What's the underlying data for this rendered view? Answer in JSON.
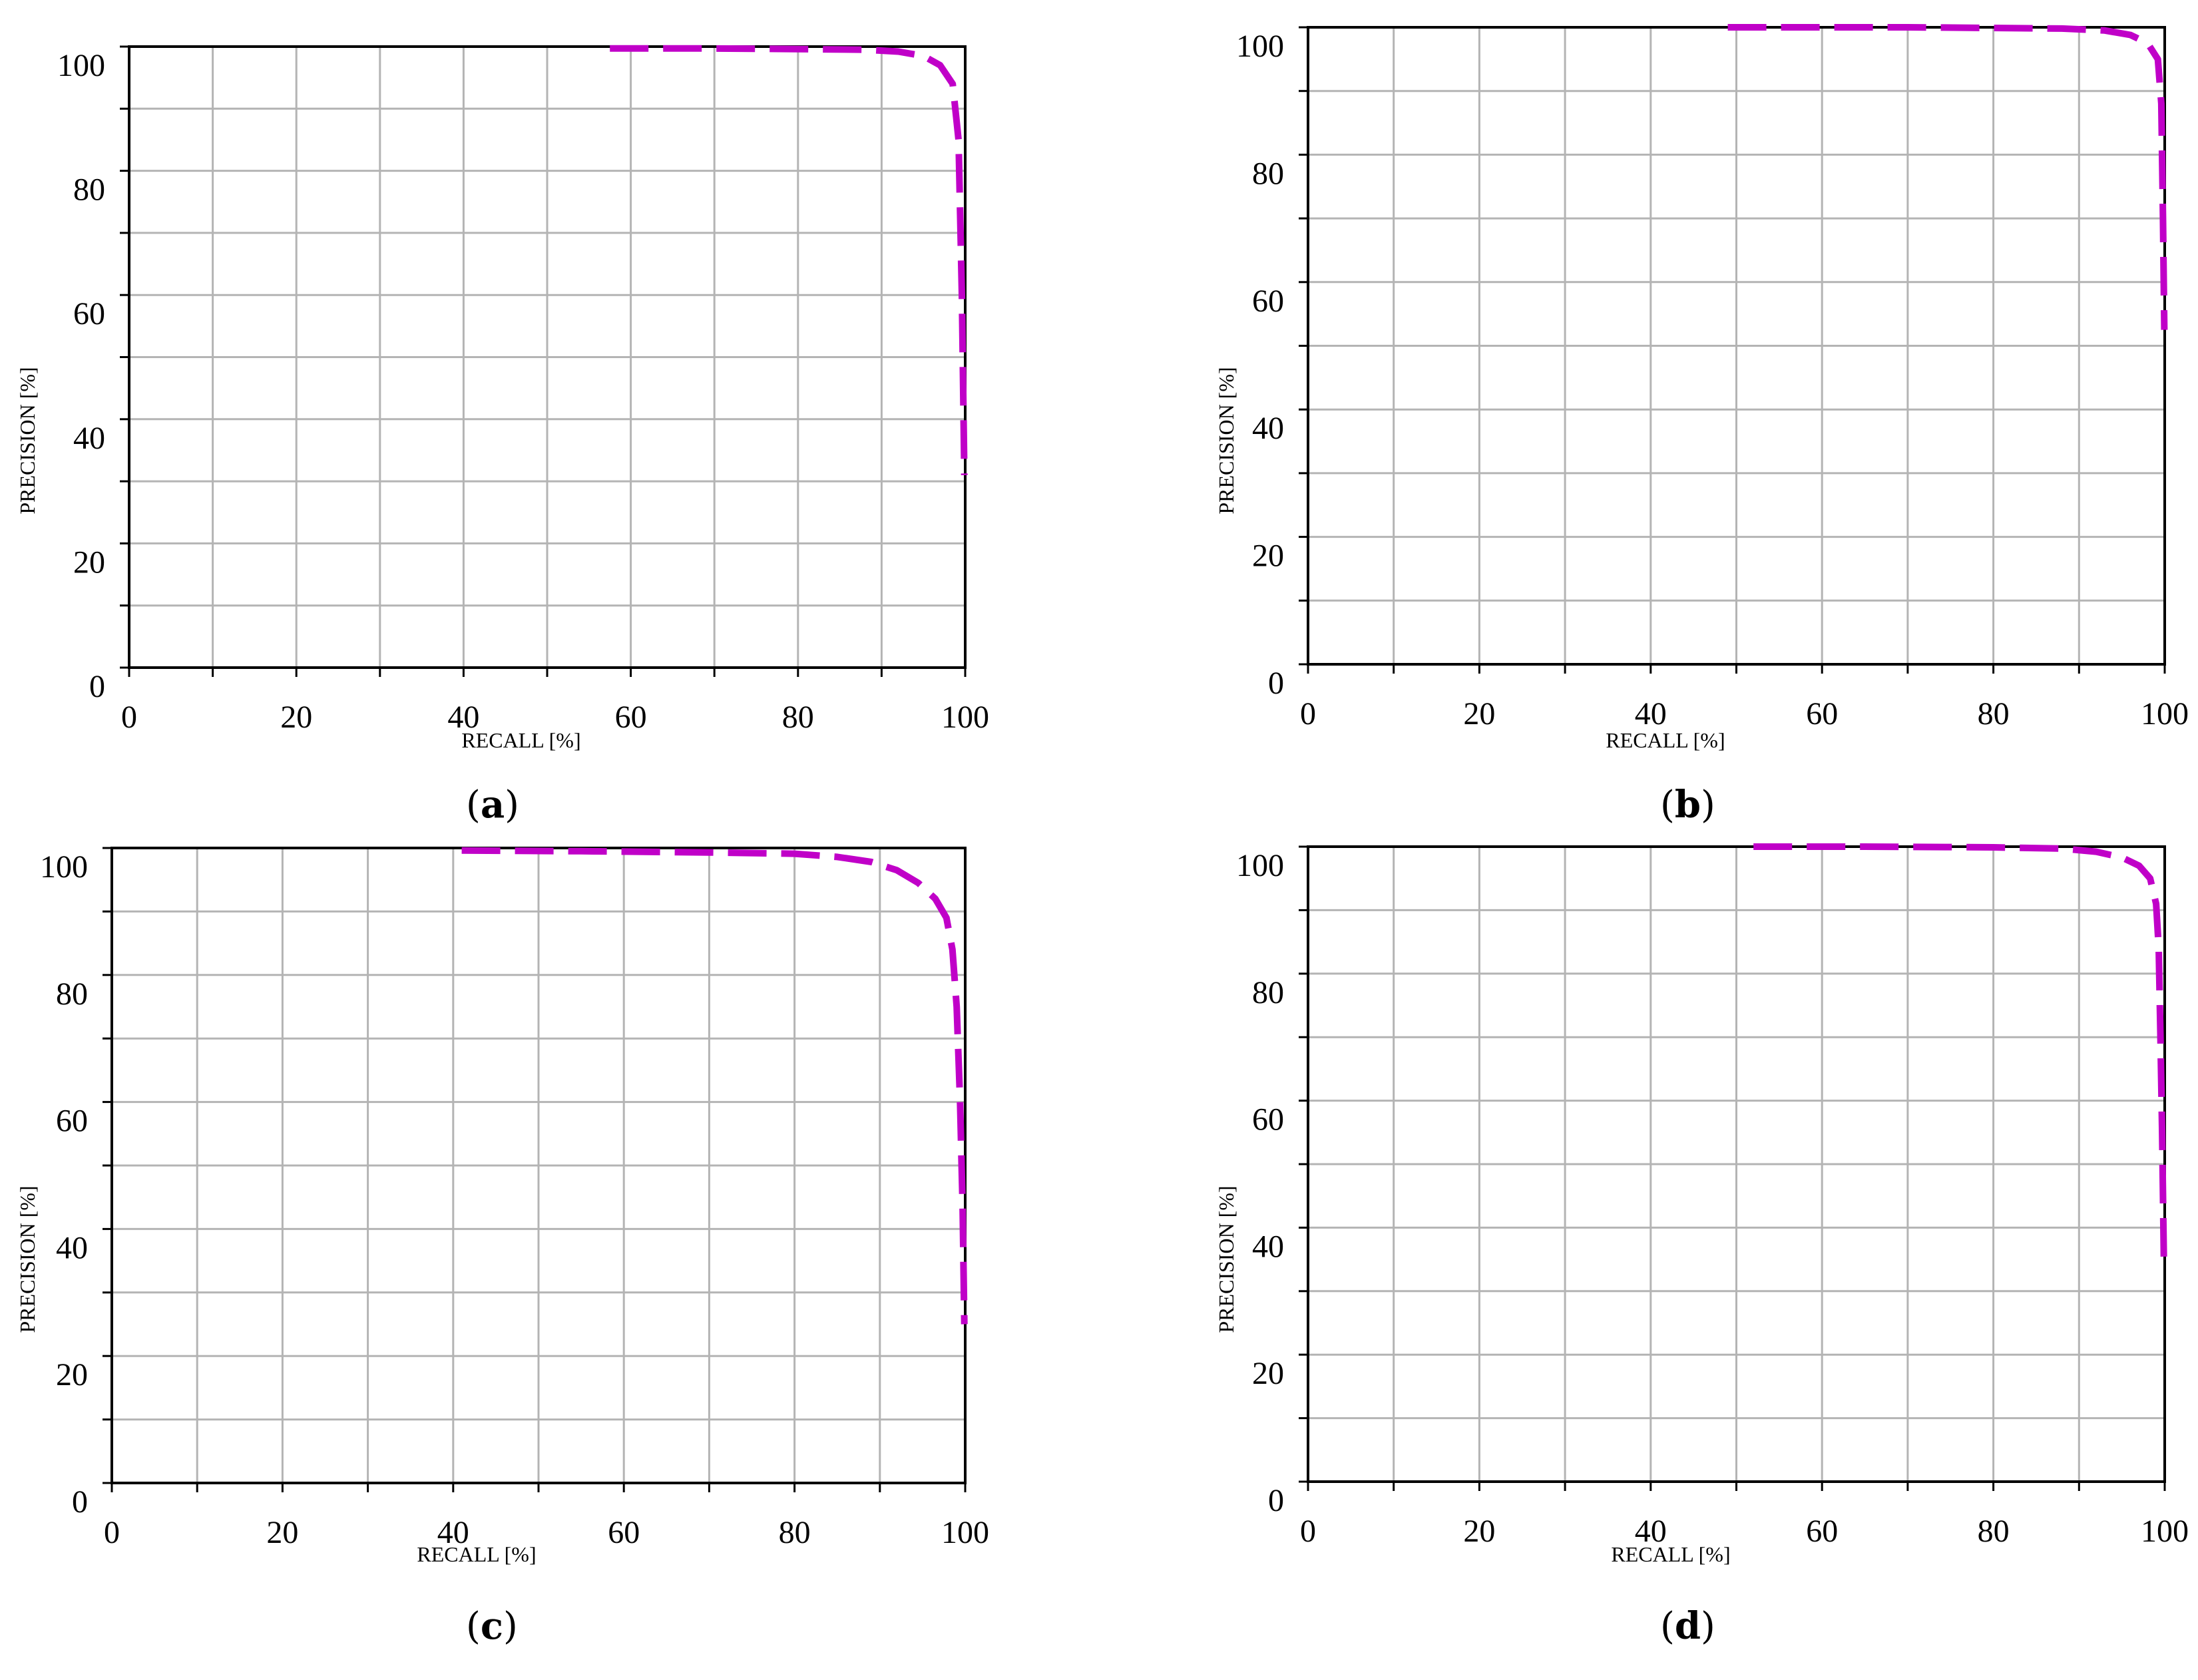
{
  "colors": {
    "curve": "#c000c8",
    "grid": "#b4b4b4",
    "axis": "#000000"
  },
  "chart_data": [
    {
      "type": "line",
      "panel_label": "a",
      "xlabel": "RECALL [%]",
      "ylabel": "PRECISION [%]",
      "xlim": [
        0,
        100
      ],
      "ylim": [
        0,
        100
      ],
      "x_ticks": [
        0,
        20,
        40,
        60,
        80,
        100
      ],
      "y_ticks": [
        0,
        20,
        40,
        60,
        80,
        100
      ],
      "grid": true,
      "series": [
        {
          "line_style": "dashed",
          "x": [
            57.5,
            70,
            80,
            88,
            92,
            95,
            97,
            98.5,
            99.2,
            99.6,
            99.9
          ],
          "y": [
            99.7,
            99.7,
            99.6,
            99.5,
            99.2,
            98.5,
            97,
            94,
            85,
            60,
            31
          ]
        }
      ]
    },
    {
      "type": "line",
      "panel_label": "b",
      "xlabel": "RECALL [%]",
      "ylabel": "PRECISION [%]",
      "xlim": [
        0,
        100
      ],
      "ylim": [
        0,
        100
      ],
      "x_ticks": [
        0,
        20,
        40,
        60,
        80,
        100
      ],
      "y_ticks": [
        0,
        20,
        40,
        60,
        80,
        100
      ],
      "grid": true,
      "series": [
        {
          "line_style": "dashed",
          "x": [
            49,
            60,
            70,
            80,
            88,
            93,
            96,
            98,
            99.2,
            99.6,
            99.8,
            99.95
          ],
          "y": [
            100,
            100,
            100,
            99.9,
            99.8,
            99.5,
            98.8,
            97.5,
            95,
            88,
            70,
            52.5
          ]
        }
      ]
    },
    {
      "type": "line",
      "panel_label": "c",
      "xlabel": "RECALL [%]",
      "ylabel": "PRECISION [%]",
      "xlim": [
        0,
        100
      ],
      "ylim": [
        0,
        100
      ],
      "x_ticks": [
        0,
        20,
        40,
        60,
        80,
        100
      ],
      "y_ticks": [
        0,
        20,
        40,
        60,
        80,
        100
      ],
      "grid": true,
      "series": [
        {
          "line_style": "dashed",
          "x": [
            41,
            55,
            70,
            80,
            85,
            89,
            92,
            94.5,
            96.5,
            97.8,
            98.5,
            99,
            99.4,
            99.7,
            99.9
          ],
          "y": [
            99.6,
            99.5,
            99.3,
            99.1,
            98.6,
            97.8,
            96.5,
            94.5,
            92,
            89,
            84,
            75,
            60,
            43,
            25
          ]
        }
      ]
    },
    {
      "type": "line",
      "panel_label": "d",
      "xlabel": "RECALL [%]",
      "ylabel": "PRECISION [%]",
      "xlim": [
        0,
        100
      ],
      "ylim": [
        0,
        100
      ],
      "x_ticks": [
        0,
        20,
        40,
        60,
        80,
        100
      ],
      "y_ticks": [
        0,
        20,
        40,
        60,
        80,
        100
      ],
      "grid": true,
      "series": [
        {
          "line_style": "dashed",
          "x": [
            52,
            65,
            80,
            88,
            92,
            95,
            97,
            98.3,
            99,
            99.3,
            99.5,
            99.7,
            99.9
          ],
          "y": [
            100,
            100,
            99.9,
            99.7,
            99.2,
            98.3,
            97,
            95,
            91,
            84,
            70,
            55,
            35
          ]
        }
      ]
    }
  ]
}
